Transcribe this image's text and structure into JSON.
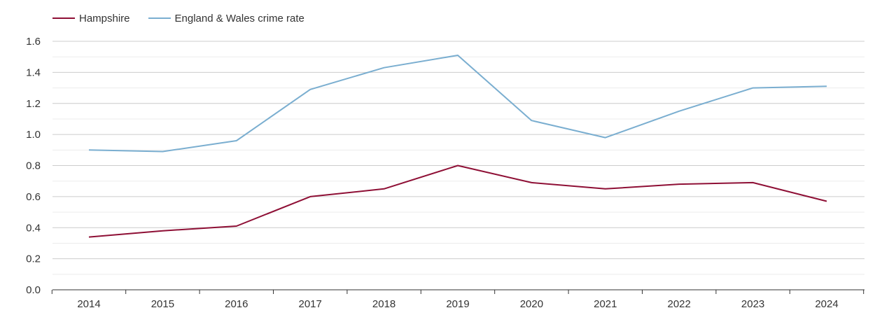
{
  "chart_data": {
    "type": "line",
    "title": "",
    "xlabel": "",
    "ylabel": "",
    "categories": [
      "2014",
      "2015",
      "2016",
      "2017",
      "2018",
      "2019",
      "2020",
      "2021",
      "2022",
      "2023",
      "2024"
    ],
    "yticks": [
      "0.0",
      "0.2",
      "0.4",
      "0.6",
      "0.8",
      "1.0",
      "1.2",
      "1.4",
      "1.6"
    ],
    "ylim": [
      0,
      1.6
    ],
    "grid": true,
    "legend_position": "top-left",
    "series": [
      {
        "name": "Hampshire",
        "color": "#8e0f35",
        "values": [
          0.34,
          0.38,
          0.41,
          0.6,
          0.65,
          0.8,
          0.69,
          0.65,
          0.68,
          0.69,
          0.57
        ]
      },
      {
        "name": "England & Wales crime rate",
        "color": "#7aaed0",
        "values": [
          0.9,
          0.89,
          0.96,
          1.29,
          1.43,
          1.51,
          1.09,
          0.98,
          1.15,
          1.3,
          1.31
        ]
      }
    ]
  }
}
